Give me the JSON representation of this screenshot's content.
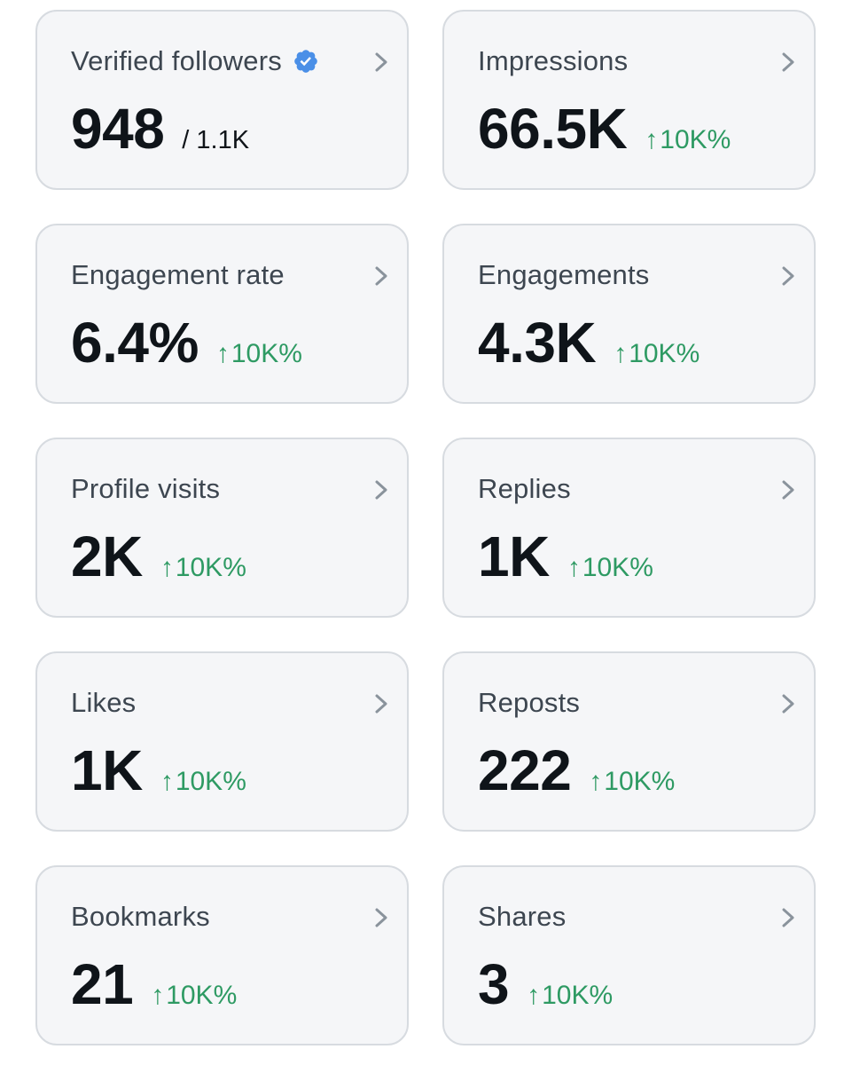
{
  "colors": {
    "card_background": "#f5f6f8",
    "card_border": "#d7dbe0",
    "title_text": "#3d4650",
    "value_text": "#0f1419",
    "positive_change": "#2e9a63",
    "verified_badge": "#4a8fe7",
    "chevron": "#8a939c"
  },
  "icons": {
    "verified": "verified-badge-icon",
    "chevron": "chevron-right-icon",
    "change": "arrow-up-icon"
  },
  "cards": [
    {
      "title": "Verified followers",
      "value": "948",
      "subtotal": "/ 1.1K",
      "change": ""
    },
    {
      "title": "Impressions",
      "value": "66.5K",
      "subtotal": "",
      "change": "10K%"
    },
    {
      "title": "Engagement rate",
      "value": "6.4%",
      "subtotal": "",
      "change": "10K%"
    },
    {
      "title": "Engagements",
      "value": "4.3K",
      "subtotal": "",
      "change": "10K%"
    },
    {
      "title": "Profile visits",
      "value": "2K",
      "subtotal": "",
      "change": "10K%"
    },
    {
      "title": "Replies",
      "value": "1K",
      "subtotal": "",
      "change": "10K%"
    },
    {
      "title": "Likes",
      "value": "1K",
      "subtotal": "",
      "change": "10K%"
    },
    {
      "title": "Reposts",
      "value": "222",
      "subtotal": "",
      "change": "10K%"
    },
    {
      "title": "Bookmarks",
      "value": "21",
      "subtotal": "",
      "change": "10K%"
    },
    {
      "title": "Shares",
      "value": "3",
      "subtotal": "",
      "change": "10K%"
    }
  ]
}
